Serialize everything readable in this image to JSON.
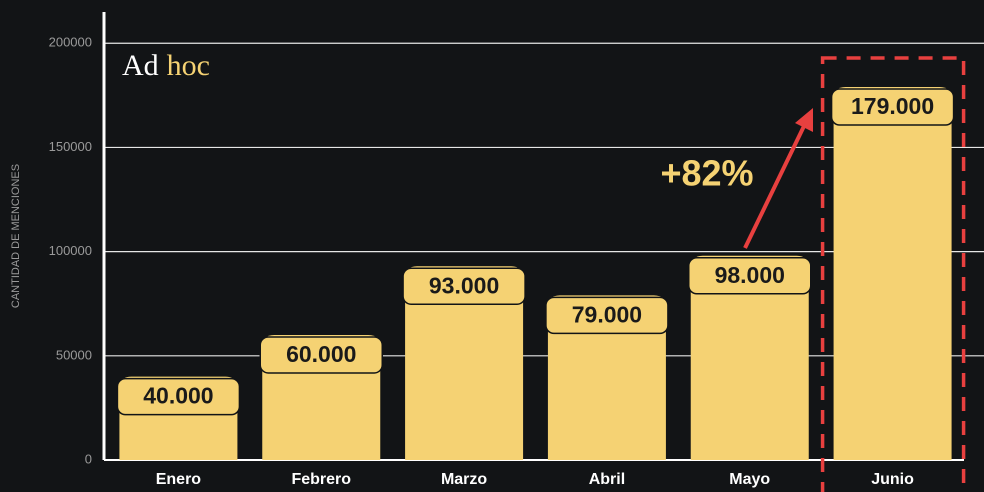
{
  "chart_data": {
    "type": "bar",
    "brand": [
      "Ad",
      "hoc"
    ],
    "y_label": "CANTIDAD DE MENCIONES",
    "categories": [
      "Enero",
      "Febrero",
      "Marzo",
      "Abril",
      "Mayo",
      "Junio"
    ],
    "values": [
      40000,
      60000,
      93000,
      79000,
      98000,
      179000
    ],
    "value_labels": [
      "40.000",
      "60.000",
      "93.000",
      "79.000",
      "98.000",
      "179.000"
    ],
    "color": "#f5d273",
    "ylim": [
      0,
      215000
    ],
    "yticks": [
      0,
      50000,
      100000,
      150000,
      200000
    ],
    "grid": true,
    "annotation": "+82%",
    "highlight_color": "#e8403f"
  }
}
